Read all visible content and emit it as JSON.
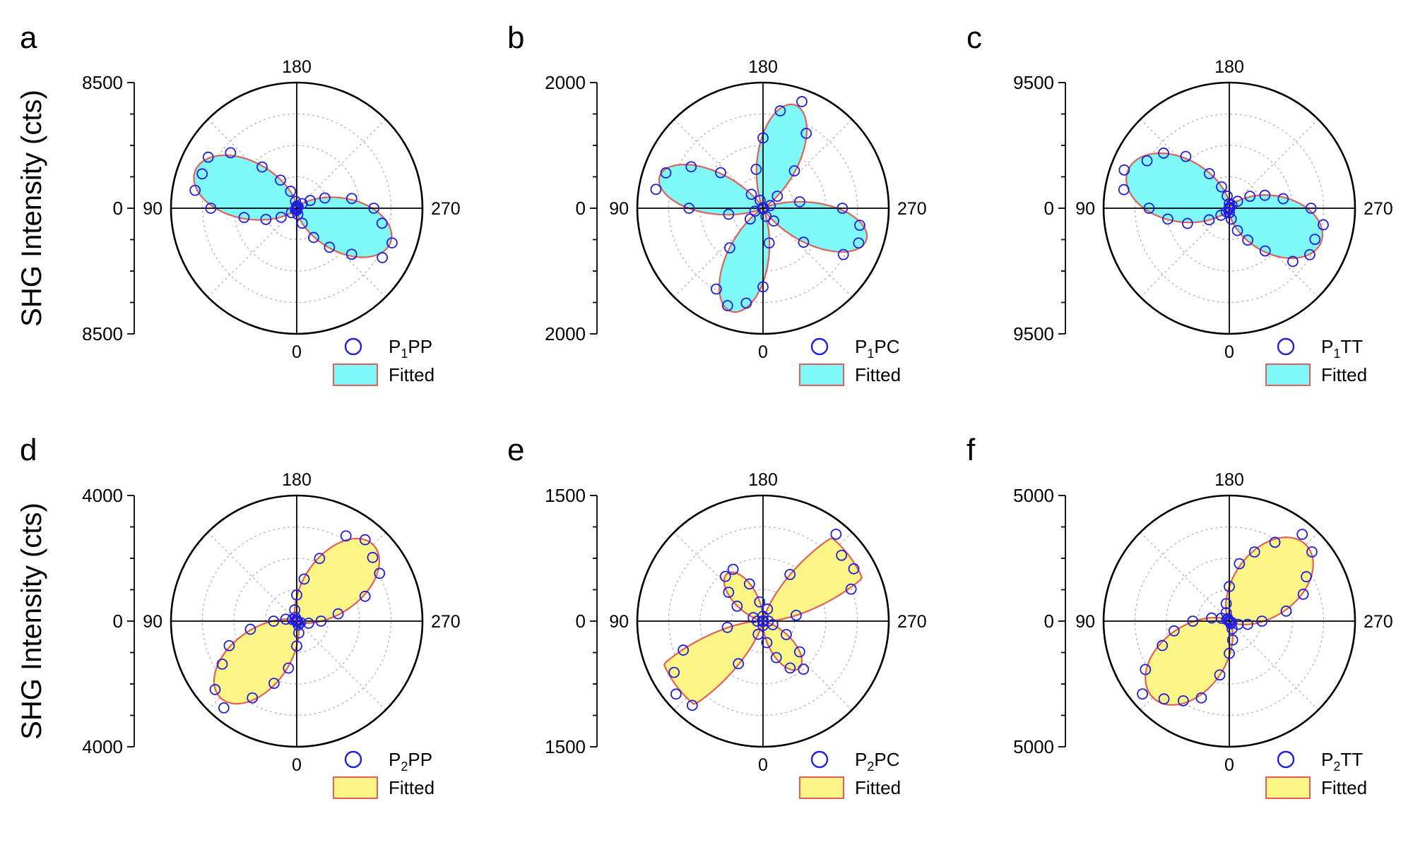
{
  "colors": {
    "top_fill": "#7ff8f8",
    "bottom_fill": "#fbf585",
    "fit_stroke": "#e0605a",
    "marker": "#1f1fdc",
    "grid": "#b4b4b4"
  },
  "y_axis_label": "SHG Intensity (cts)",
  "chart_data": [
    {
      "type": "polar",
      "panel": "a",
      "radial_max": 8500,
      "radial_tick_labels": [
        "8500",
        "0",
        "8500"
      ],
      "angle_labels": {
        "top": "180",
        "left": "90",
        "right": "270",
        "bottom": "0"
      },
      "grid_rings": [
        0.25,
        0.5,
        0.75
      ],
      "series": [
        {
          "name": "P1PP",
          "label_main": "P",
          "label_sub": "1",
          "label_rest": "PP",
          "kind": "scatter-circle"
        },
        {
          "name": "Fitted",
          "kind": "filled-area",
          "fill": "top"
        }
      ],
      "model": {
        "a": 1.0,
        "c": 0.35,
        "d": 0.0,
        "phi": 290,
        "scale": 8500,
        "sym_amp": 0.04,
        "sym_phase": 110
      },
      "points_theta_step": 10
    },
    {
      "type": "polar",
      "panel": "b",
      "radial_max": 2000,
      "radial_tick_labels": [
        "2000",
        "0",
        "2000"
      ],
      "angle_labels": {
        "top": "180",
        "left": "90",
        "right": "270",
        "bottom": "0"
      },
      "grid_rings": [
        0.25,
        0.5,
        0.75
      ],
      "series": [
        {
          "name": "P1PC",
          "label_main": "P",
          "label_sub": "1",
          "label_rest": "PC",
          "kind": "scatter-circle"
        },
        {
          "name": "Fitted",
          "kind": "filled-area",
          "fill": "top"
        }
      ],
      "model": {
        "a": 0.0,
        "c": 0.0,
        "d": 1.0,
        "phi": 62,
        "scale": 2000,
        "sym_amp": 0.0,
        "sym_phase": 0
      },
      "points_theta_step": 10
    },
    {
      "type": "polar",
      "panel": "c",
      "radial_max": 9500,
      "radial_tick_labels": [
        "9500",
        "0",
        "9500"
      ],
      "angle_labels": {
        "top": "180",
        "left": "90",
        "right": "270",
        "bottom": "0"
      },
      "grid_rings": [
        0.25,
        0.5,
        0.75
      ],
      "series": [
        {
          "name": "P1TT",
          "label_main": "P",
          "label_sub": "1",
          "label_rest": "TT",
          "kind": "scatter-circle"
        },
        {
          "name": "Fitted",
          "kind": "filled-area",
          "fill": "top"
        }
      ],
      "model": {
        "a": 1.0,
        "c": 0.55,
        "d": 0.0,
        "phi": 290,
        "scale": 9500,
        "sym_amp": 0.05,
        "sym_phase": 110
      },
      "points_theta_step": 10
    },
    {
      "type": "polar",
      "panel": "d",
      "radial_max": 4000,
      "radial_tick_labels": [
        "4000",
        "0",
        "4000"
      ],
      "angle_labels": {
        "top": "180",
        "left": "90",
        "right": "270",
        "bottom": "0"
      },
      "grid_rings": [
        0.25,
        0.5,
        0.75
      ],
      "series": [
        {
          "name": "P2PP",
          "label_main": "P",
          "label_sub": "2",
          "label_rest": "PP",
          "kind": "scatter-circle"
        },
        {
          "name": "Fitted",
          "kind": "filled-area",
          "fill": "bottom"
        }
      ],
      "model": {
        "a": 1.0,
        "c": 0.35,
        "d": 0.0,
        "phi": 225,
        "scale": 4000,
        "sym_amp": 0.0,
        "sym_phase": 0
      },
      "points_theta_step": 10
    },
    {
      "type": "polar",
      "panel": "e",
      "radial_max": 1500,
      "radial_tick_labels": [
        "1500",
        "0",
        "1500"
      ],
      "angle_labels": {
        "top": "180",
        "left": "90",
        "right": "270",
        "bottom": "0"
      },
      "grid_rings": [
        0.25,
        0.5,
        0.75
      ],
      "series": [
        {
          "name": "P2PC",
          "label_main": "P",
          "label_sub": "2",
          "label_rest": "PC",
          "kind": "scatter-circle"
        },
        {
          "name": "Fitted",
          "kind": "filled-area",
          "fill": "bottom"
        }
      ],
      "model": {
        "a": 0.0,
        "c": 0.0,
        "d": 1.0,
        "phi": 8,
        "scale": 1500,
        "sym_amp": 0.0,
        "sym_phase": 0,
        "lobe_weights": [
          0.0,
          0.42,
          0.0,
          0.42
        ]
      },
      "points_theta_step": 10
    },
    {
      "type": "polar",
      "panel": "f",
      "radial_max": 5000,
      "radial_tick_labels": [
        "5000",
        "0",
        "5000"
      ],
      "angle_labels": {
        "top": "180",
        "left": "90",
        "right": "270",
        "bottom": "0"
      },
      "grid_rings": [
        0.25,
        0.5,
        0.75
      ],
      "series": [
        {
          "name": "P2TT",
          "label_main": "P",
          "label_sub": "2",
          "label_rest": "TT",
          "kind": "scatter-circle"
        },
        {
          "name": "Fitted",
          "kind": "filled-area",
          "fill": "bottom"
        }
      ],
      "model": {
        "a": 1.0,
        "c": 0.6,
        "d": 0.0,
        "phi": 225,
        "scale": 5000,
        "sym_amp": 0.0,
        "sym_phase": 0
      },
      "points_theta_step": 10
    }
  ]
}
